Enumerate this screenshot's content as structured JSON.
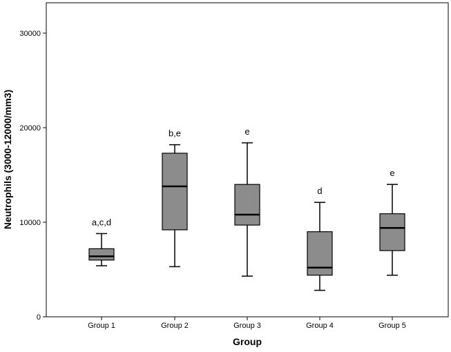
{
  "chart_data": {
    "type": "boxplot",
    "title": "",
    "xlabel": "Group",
    "ylabel": "Neutrophils (3000-12000/mm3)",
    "ylim": [
      0,
      32000
    ],
    "yticks": [
      0,
      10000,
      20000,
      30000
    ],
    "grid": false,
    "box_color": "#8c8c8c",
    "categories": [
      "Group 1",
      "Group 2",
      "Group 3",
      "Group 4",
      "Group 5"
    ],
    "boxes": [
      {
        "min": 5400,
        "q1": 6000,
        "median": 6400,
        "q3": 7200,
        "max": 8800,
        "label": "a,c,d"
      },
      {
        "min": 5300,
        "q1": 9200,
        "median": 13800,
        "q3": 17300,
        "max": 18200,
        "label": "b,e"
      },
      {
        "min": 4300,
        "q1": 9700,
        "median": 10800,
        "q3": 14000,
        "max": 18400,
        "label": "e"
      },
      {
        "min": 2800,
        "q1": 4400,
        "median": 5200,
        "q3": 9000,
        "max": 12100,
        "label": "d"
      },
      {
        "min": 4400,
        "q1": 7000,
        "median": 9400,
        "q3": 10900,
        "max": 14000,
        "label": "e"
      }
    ]
  }
}
